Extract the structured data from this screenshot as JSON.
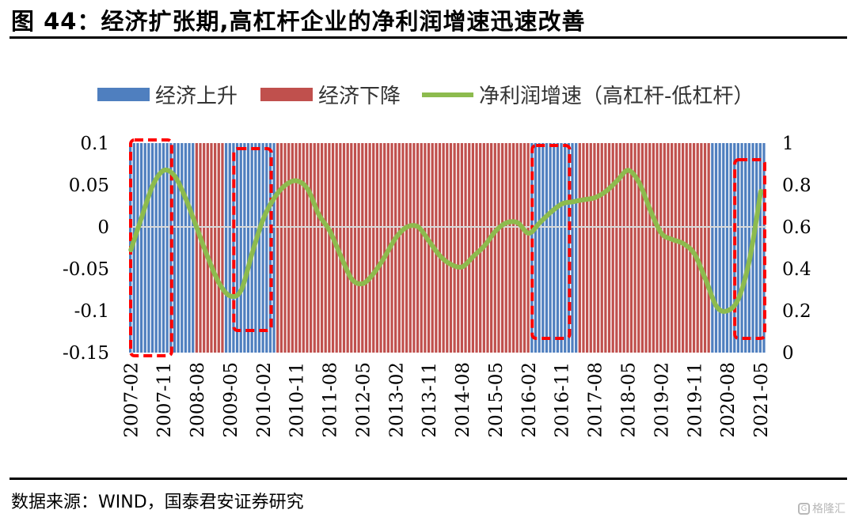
{
  "title": "图 44：经济扩张期,高杠杆企业的净利润增速迅速改善",
  "source": "数据来源：WIND，国泰君安证券研究",
  "watermark": "格隆汇",
  "colors": {
    "rise": "#4f7fbf",
    "fall": "#c0504d",
    "line": "#8dbb4e",
    "highlight": "#ff0000"
  },
  "chart_data": {
    "type": "bar+line",
    "legend": [
      "经济上升",
      "经济下降",
      "净利润增速（高杠杆-低杠杆）"
    ],
    "legend_position": "top",
    "y_left": {
      "min": -0.15,
      "max": 0.1,
      "ticks": [
        "0.1",
        "0.05",
        "0",
        "-0.05",
        "-0.1",
        "-0.15"
      ]
    },
    "y_right": {
      "min": 0,
      "max": 1,
      "ticks": [
        "1",
        "0.8",
        "0.6",
        "0.4",
        "0.2",
        "0"
      ]
    },
    "x_tick_labels": [
      "2007-02",
      "2007-11",
      "2008-08",
      "2009-05",
      "2010-02",
      "2010-11",
      "2011-08",
      "2012-05",
      "2013-02",
      "2013-11",
      "2014-08",
      "2015-05",
      "2016-02",
      "2016-11",
      "2017-08",
      "2018-05",
      "2019-02",
      "2019-11",
      "2020-08",
      "2021-05"
    ],
    "months": {
      "start": "2007-02",
      "end": "2021-06"
    },
    "regimes": [
      {
        "from": "2007-02",
        "to": "2008-07",
        "state": "经济上升"
      },
      {
        "from": "2008-08",
        "to": "2009-03",
        "state": "经济下降"
      },
      {
        "from": "2009-04",
        "to": "2010-05",
        "state": "经济上升"
      },
      {
        "from": "2010-06",
        "to": "2016-02",
        "state": "经济下降"
      },
      {
        "from": "2016-03",
        "to": "2017-03",
        "state": "经济上升"
      },
      {
        "from": "2017-04",
        "to": "2020-03",
        "state": "经济下降"
      },
      {
        "from": "2020-04",
        "to": "2021-06",
        "state": "经济上升"
      }
    ],
    "highlights": [
      {
        "from": "2007-02",
        "to": "2008-01"
      },
      {
        "from": "2009-06",
        "to": "2010-04"
      },
      {
        "from": "2016-03",
        "to": "2017-01"
      },
      {
        "from": "2020-10",
        "to": "2021-06"
      }
    ],
    "series": [
      {
        "name": "净利润增速（高杠杆-低杠杆）",
        "axis": "right",
        "points": [
          [
            "2007-02",
            0.49
          ],
          [
            "2007-05",
            0.65
          ],
          [
            "2007-08",
            0.8
          ],
          [
            "2007-11",
            0.87
          ],
          [
            "2008-02",
            0.84
          ],
          [
            "2008-05",
            0.73
          ],
          [
            "2008-08",
            0.59
          ],
          [
            "2008-11",
            0.45
          ],
          [
            "2009-02",
            0.33
          ],
          [
            "2009-05",
            0.27
          ],
          [
            "2009-08",
            0.3
          ],
          [
            "2009-11",
            0.48
          ],
          [
            "2010-02",
            0.64
          ],
          [
            "2010-05",
            0.74
          ],
          [
            "2010-08",
            0.8
          ],
          [
            "2010-11",
            0.82
          ],
          [
            "2011-02",
            0.78
          ],
          [
            "2011-05",
            0.66
          ],
          [
            "2011-08",
            0.58
          ],
          [
            "2011-11",
            0.46
          ],
          [
            "2012-02",
            0.35
          ],
          [
            "2012-05",
            0.33
          ],
          [
            "2012-08",
            0.38
          ],
          [
            "2012-11",
            0.46
          ],
          [
            "2013-02",
            0.55
          ],
          [
            "2013-05",
            0.6
          ],
          [
            "2013-08",
            0.6
          ],
          [
            "2013-11",
            0.53
          ],
          [
            "2014-02",
            0.46
          ],
          [
            "2014-05",
            0.42
          ],
          [
            "2014-08",
            0.41
          ],
          [
            "2014-11",
            0.46
          ],
          [
            "2015-02",
            0.51
          ],
          [
            "2015-05",
            0.58
          ],
          [
            "2015-08",
            0.62
          ],
          [
            "2015-11",
            0.62
          ],
          [
            "2016-02",
            0.57
          ],
          [
            "2016-05",
            0.62
          ],
          [
            "2016-08",
            0.67
          ],
          [
            "2016-11",
            0.71
          ],
          [
            "2017-02",
            0.72
          ],
          [
            "2017-05",
            0.73
          ],
          [
            "2017-08",
            0.74
          ],
          [
            "2017-11",
            0.77
          ],
          [
            "2018-02",
            0.82
          ],
          [
            "2018-05",
            0.87
          ],
          [
            "2018-08",
            0.81
          ],
          [
            "2018-11",
            0.68
          ],
          [
            "2019-02",
            0.57
          ],
          [
            "2019-05",
            0.54
          ],
          [
            "2019-08",
            0.52
          ],
          [
            "2019-11",
            0.47
          ],
          [
            "2020-02",
            0.35
          ],
          [
            "2020-05",
            0.22
          ],
          [
            "2020-08",
            0.2
          ],
          [
            "2020-11",
            0.26
          ],
          [
            "2021-02",
            0.45
          ],
          [
            "2021-05",
            0.77
          ]
        ]
      }
    ]
  }
}
